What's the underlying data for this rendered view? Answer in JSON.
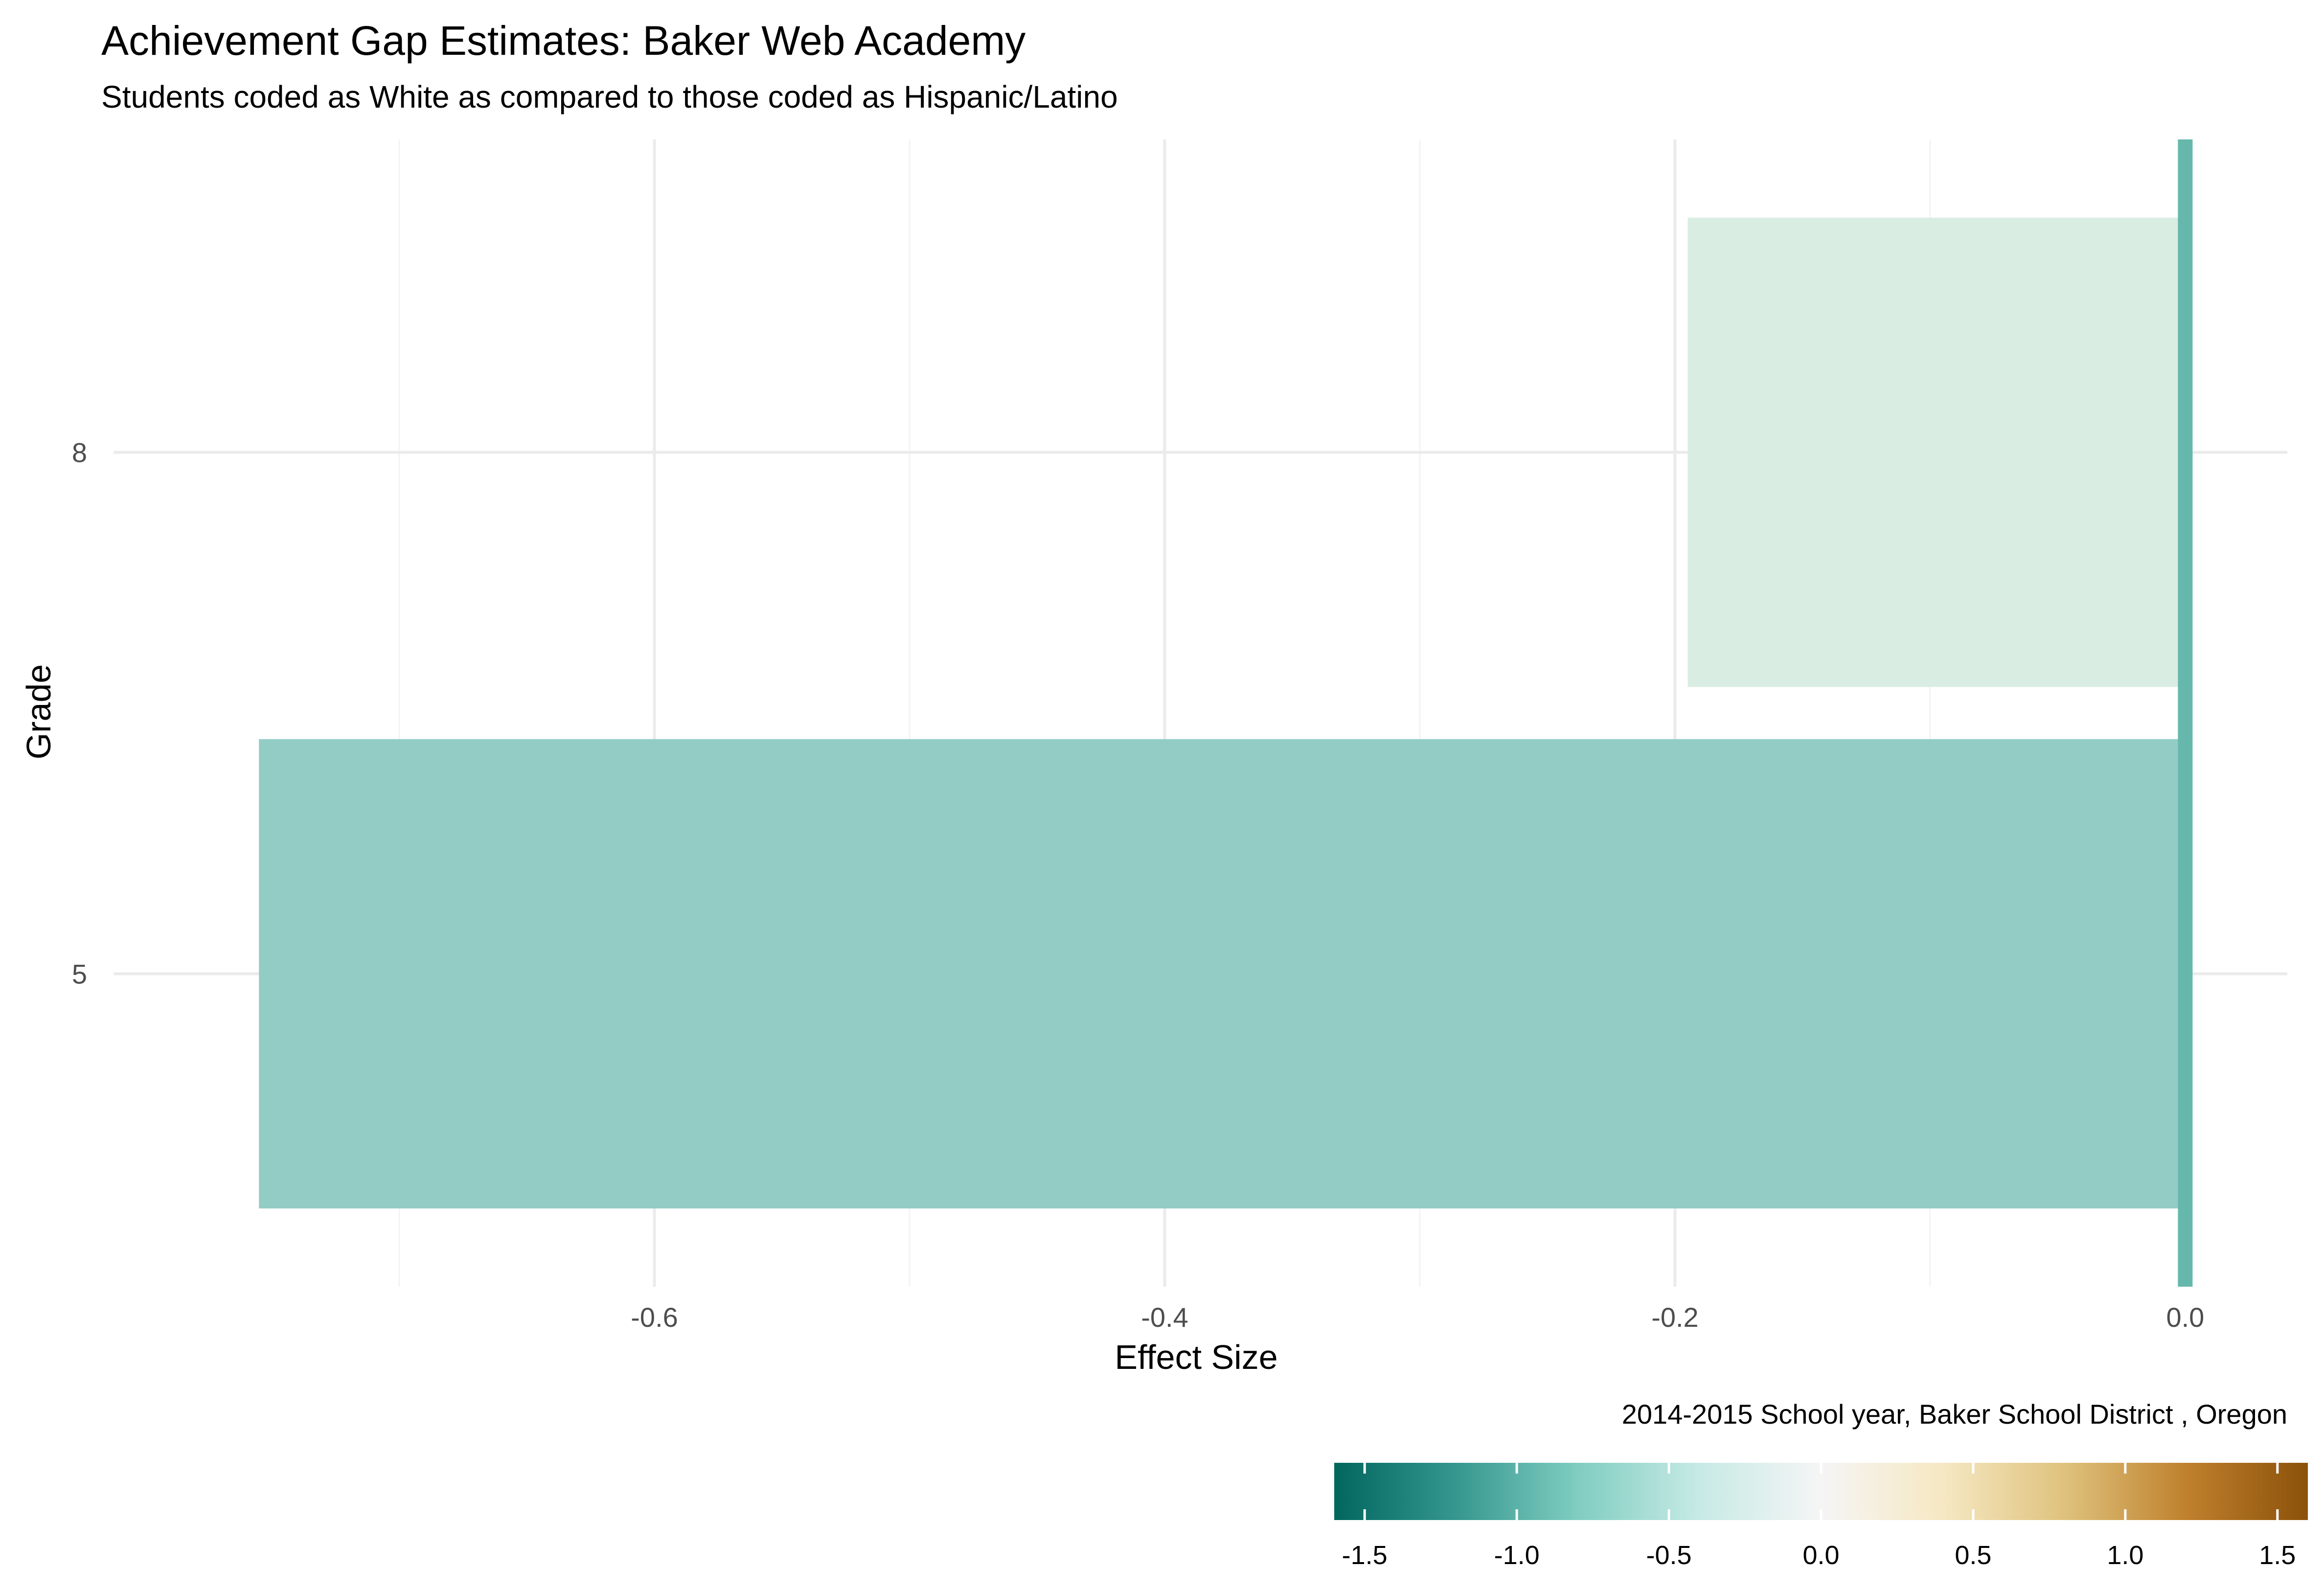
{
  "chart_data": {
    "type": "bar",
    "orientation": "horizontal",
    "title": "Achievement Gap Estimates: Baker Web Academy",
    "subtitle": "Students coded as White as compared to those coded as Hispanic/Latino",
    "caption": "2014-2015 School year,  Baker School District , Oregon",
    "xlabel": "Effect Size",
    "ylabel": "Grade",
    "categories": [
      "5",
      "8"
    ],
    "values": [
      -0.755,
      -0.195
    ],
    "bar_colors": [
      "#93CCC5",
      "#DAEDE3"
    ],
    "x_ticks": [
      -0.6,
      -0.4,
      -0.2,
      0.0
    ],
    "x_tick_labels": [
      "-0.6",
      "-0.4",
      "-0.2",
      "0.0"
    ],
    "xlim": [
      -0.812,
      0.04
    ],
    "zero_line_color": "#66B8AC",
    "grid": true,
    "legend": {
      "type": "colorbar",
      "placement": "bottom-right",
      "range": [
        -1.6,
        1.6
      ],
      "ticks": [
        -1.5,
        -1.0,
        -0.5,
        0.0,
        0.5,
        1.0,
        1.5
      ],
      "tick_labels": [
        "-1.5",
        "-1.0",
        "-0.5",
        "0.0",
        "0.5",
        "1.0",
        "1.5"
      ],
      "colors": [
        "#01665E",
        "#35978F",
        "#80CDC1",
        "#C7EAE5",
        "#F5F5F5",
        "#F6E8C3",
        "#DFC27D",
        "#BF812D",
        "#8C510A"
      ]
    }
  }
}
